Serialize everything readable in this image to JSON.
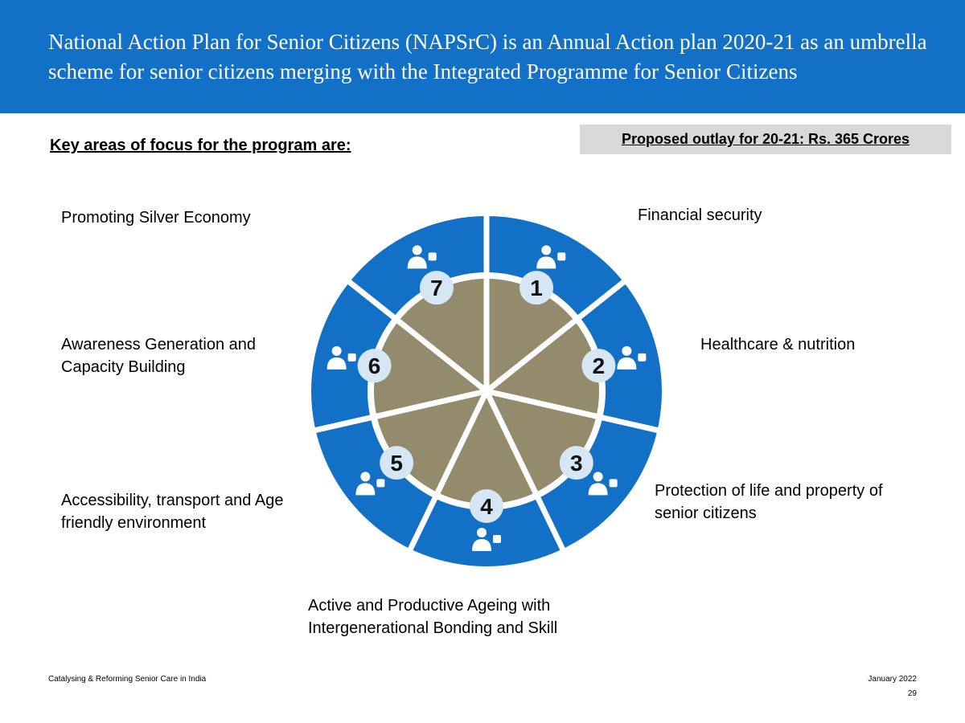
{
  "header": {
    "title": "National Action Plan for Senior Citizens (NAPSrC) is an Annual Action plan 2020-21 as an umbrella scheme for senior citizens merging with the Integrated Programme for Senior Citizens"
  },
  "key_areas_heading": "Key areas of focus for the program are:",
  "outlay": "Proposed outlay for 20-21: Rs. 365 Crores",
  "colors": {
    "blue": "#1270c6",
    "brown": "#948a6c",
    "badge": "#d6e6f4"
  },
  "areas": [
    {
      "number": "1",
      "label": "Financial security",
      "icon": "money-stack-icon"
    },
    {
      "number": "2",
      "label": "Healthcare & nutrition",
      "icon": "person-plus-icon"
    },
    {
      "number": "3",
      "label": "Protection of life and property of senior citizens",
      "icon": "handshake-icon"
    },
    {
      "number": "4",
      "label": "Active and Productive Ageing with Intergenerational Bonding and Skill",
      "icon": "presenter-chart-icon"
    },
    {
      "number": "5",
      "label": "Accessibility, transport and Age friendly environment",
      "icon": "people-greeting-icon"
    },
    {
      "number": "6",
      "label": "Awareness Generation and Capacity Building",
      "icon": "speech-bubbles-icon"
    },
    {
      "number": "7",
      "label": "Promoting Silver Economy",
      "icon": "group-people-icon"
    }
  ],
  "footer": {
    "left": "Catalysing & Reforming Senior Care in India",
    "date": "January 2022",
    "page": "29"
  }
}
